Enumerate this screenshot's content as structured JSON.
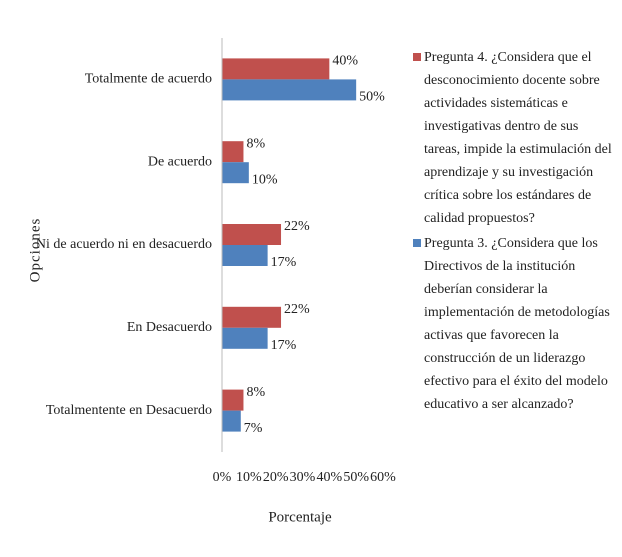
{
  "chart_data": {
    "type": "barh",
    "categories": [
      "Totalmente de acuerdo",
      "De acuerdo",
      "Ni de acuerdo ni en desacuerdo",
      "En Desacuerdo",
      "Totalmentente en Desacuerdo"
    ],
    "series": [
      {
        "name": "Pregunta 4. ¿Considera que el desconocimiento docente sobre actividades sistemáticas e investigativas dentro de sus tareas, impide la estimulación del aprendizaje y su investigación crítica sobre los estándares de calidad propuestos?",
        "color": "#c0504d",
        "values": [
          40,
          8,
          22,
          22,
          8
        ],
        "value_labels": [
          "40%",
          "8%",
          "22%",
          "22%",
          "8%"
        ]
      },
      {
        "name": "Pregunta 3. ¿Considera que los Directivos de la institución deberían considerar la implementación de metodologías activas que favorecen la construcción de un liderazgo efectivo para el éxito del modelo educativo a ser alcanzado?",
        "color": "#4f81bd",
        "values": [
          50,
          10,
          17,
          17,
          7
        ],
        "value_labels": [
          "50%",
          "10%",
          "17%",
          "17%",
          "7%"
        ]
      }
    ],
    "xlabel": "Porcentaje",
    "ylabel": "Opciones",
    "xlim": [
      0,
      60
    ],
    "xticks": [
      {
        "value": 0,
        "label": "0%"
      },
      {
        "value": 10,
        "label": "10%"
      },
      {
        "value": 20,
        "label": "20%"
      },
      {
        "value": 30,
        "label": "30%"
      },
      {
        "value": 40,
        "label": "40%"
      },
      {
        "value": 50,
        "label": "50%"
      },
      {
        "value": 60,
        "label": "60%"
      }
    ],
    "grid": false,
    "legend": "right"
  }
}
